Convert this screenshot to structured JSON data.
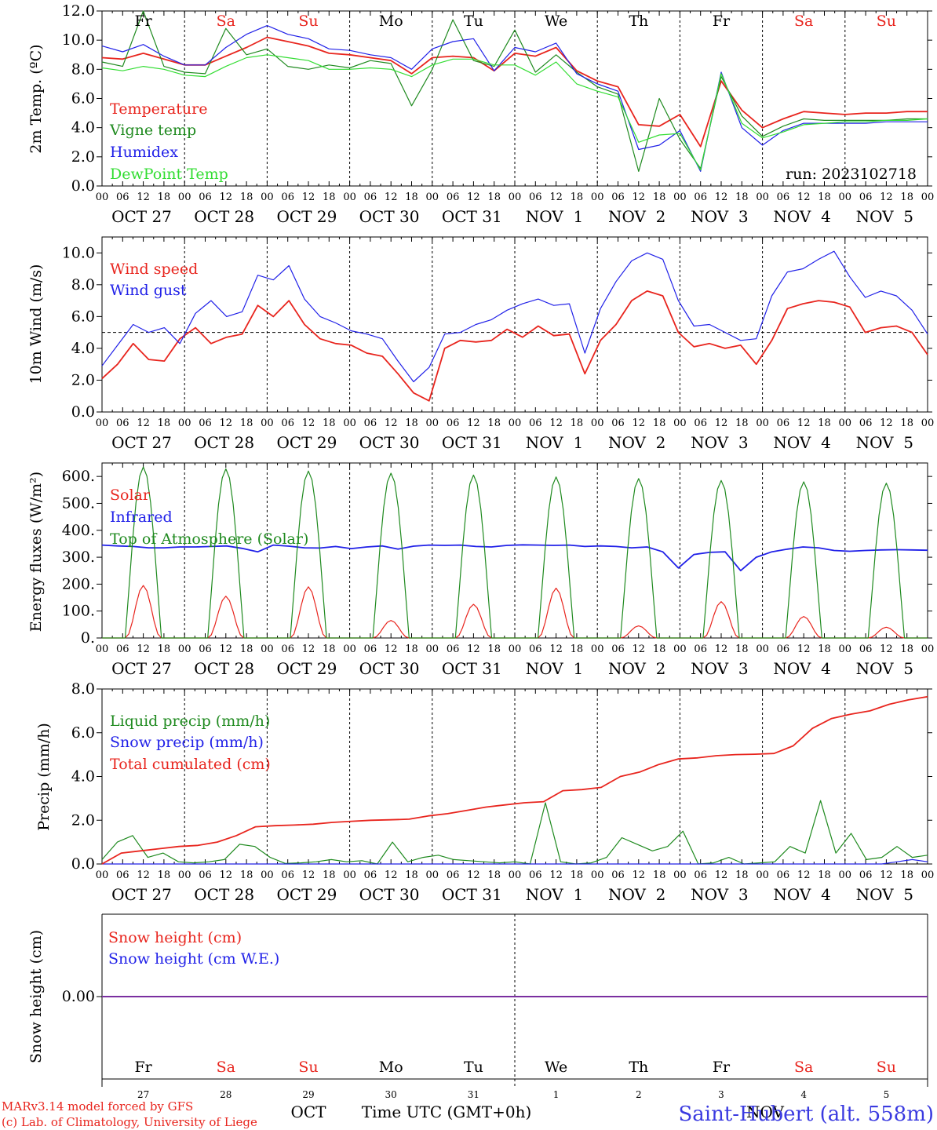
{
  "run_label": "run: 2023102718",
  "x_hour_ticks": [
    "00",
    "06",
    "12",
    "18"
  ],
  "x_date_labels": [
    "OCT 27",
    "OCT 28",
    "OCT 29",
    "OCT 30",
    "OCT 31",
    "NOV  1",
    "NOV  2",
    "NOV  3",
    "NOV  4",
    "NOV  5"
  ],
  "weekdays": [
    {
      "label": "Fr",
      "color": "#000000"
    },
    {
      "label": "Sa",
      "color": "#e8251e"
    },
    {
      "label": "Su",
      "color": "#e8251e"
    },
    {
      "label": "Mo",
      "color": "#000000"
    },
    {
      "label": "Tu",
      "color": "#000000"
    },
    {
      "label": "We",
      "color": "#000000"
    },
    {
      "label": "Th",
      "color": "#000000"
    },
    {
      "label": "Fr",
      "color": "#000000"
    },
    {
      "label": "Sa",
      "color": "#e8251e"
    },
    {
      "label": "Su",
      "color": "#e8251e"
    }
  ],
  "bottom_day_numbers": [
    "27",
    "28",
    "29",
    "30",
    "31",
    "1",
    "2",
    "3",
    "4",
    "5"
  ],
  "footer": {
    "model_line": "MARv3.14 model forced by GFS",
    "copyright_line": "(c) Lab. of Climatology, University of Liege",
    "month_oct": "OCT",
    "month_nov": "NOV",
    "axis_title": "Time UTC (GMT+0h)",
    "station": "Saint-Hubert (alt. 558m)"
  },
  "chart_data": [
    {
      "type": "line",
      "ylabel": "2m Temp. (ºC)",
      "ylim": [
        0,
        12
      ],
      "y_ticks": [
        "0.0",
        "2.0",
        "4.0",
        "6.0",
        "8.0",
        "10.0",
        "12.0"
      ],
      "x": "hours since OCT 27 00 UTC, 6-hourly, 0..240",
      "grid": "dotted day separators",
      "series": [
        {
          "name": "Temperature",
          "color": "#e8251e",
          "values": [
            8.8,
            8.7,
            9.1,
            8.7,
            8.3,
            8.3,
            8.9,
            9.5,
            10.2,
            9.9,
            9.6,
            9.1,
            9.0,
            8.8,
            8.6,
            7.7,
            8.8,
            8.9,
            8.8,
            7.9,
            9.1,
            8.9,
            9.5,
            7.9,
            7.2,
            6.8,
            4.2,
            4.1,
            4.9,
            2.7,
            7.2,
            5.2,
            4.0,
            4.6,
            5.1,
            5.0,
            4.9,
            5.0,
            5.0,
            5.1,
            5.1
          ]
        },
        {
          "name": "Vigne temp",
          "color": "#1f8a1f",
          "values": [
            8.5,
            8.2,
            12.0,
            8.2,
            7.8,
            7.7,
            10.8,
            9.0,
            9.4,
            8.2,
            8.0,
            8.3,
            8.1,
            8.6,
            8.4,
            5.5,
            8.0,
            11.4,
            8.6,
            8.2,
            10.7,
            7.8,
            9.0,
            7.8,
            6.8,
            6.3,
            1.0,
            6.0,
            3.2,
            1.2,
            7.5,
            4.8,
            3.4,
            4.1,
            4.6,
            4.5,
            4.5,
            4.5,
            4.5,
            4.6,
            4.6
          ]
        },
        {
          "name": "Humidex",
          "color": "#2121e8",
          "values": [
            9.6,
            9.2,
            9.7,
            8.9,
            8.3,
            8.3,
            9.5,
            10.4,
            11.0,
            10.4,
            10.1,
            9.4,
            9.3,
            9.0,
            8.8,
            8.0,
            9.4,
            9.9,
            10.1,
            7.9,
            9.5,
            9.2,
            9.8,
            7.7,
            7.0,
            6.5,
            2.5,
            2.8,
            3.8,
            1.0,
            7.8,
            4.0,
            2.8,
            3.8,
            4.3,
            4.3,
            4.3,
            4.3,
            4.4,
            4.4,
            4.4
          ]
        },
        {
          "name": "DewPoint Temp",
          "color": "#33dd33",
          "values": [
            8.1,
            7.9,
            8.2,
            8.0,
            7.6,
            7.5,
            8.2,
            8.8,
            9.0,
            8.8,
            8.6,
            8.0,
            8.0,
            8.1,
            8.0,
            7.5,
            8.3,
            8.7,
            8.7,
            8.3,
            8.3,
            7.6,
            8.5,
            7.0,
            6.5,
            6.1,
            3.0,
            3.5,
            3.6,
            1.1,
            7.7,
            4.3,
            3.3,
            3.7,
            4.2,
            4.3,
            4.4,
            4.4,
            4.5,
            4.5,
            4.6
          ]
        }
      ]
    },
    {
      "type": "line",
      "ylabel": "10m Wind (m/s)",
      "ylim": [
        0,
        11
      ],
      "y_ticks": [
        "0.0",
        "2.0",
        "4.0",
        "6.0",
        "8.0",
        "10.0"
      ],
      "reference_line": 5,
      "series": [
        {
          "name": "Wind speed",
          "color": "#e8251e",
          "values": [
            2.1,
            3.0,
            4.3,
            3.3,
            3.2,
            4.6,
            5.3,
            4.3,
            4.7,
            4.9,
            6.7,
            6.0,
            7.0,
            5.5,
            4.6,
            4.3,
            4.2,
            3.7,
            3.5,
            2.4,
            1.2,
            0.7,
            4.0,
            4.5,
            4.4,
            4.5,
            5.2,
            4.7,
            5.4,
            4.8,
            4.9,
            2.4,
            4.5,
            5.5,
            7.0,
            7.6,
            7.3,
            5.0,
            4.1,
            4.3,
            4.0,
            4.2,
            3.0,
            4.5,
            6.5,
            6.8,
            7.0,
            6.9,
            6.6,
            5.0,
            5.3,
            5.4,
            5.0,
            3.6
          ]
        },
        {
          "name": "Wind gust",
          "color": "#2121e8",
          "values": [
            2.9,
            4.2,
            5.5,
            5.0,
            5.3,
            4.3,
            6.2,
            7.0,
            6.0,
            6.3,
            8.6,
            8.3,
            9.2,
            7.1,
            6.0,
            5.6,
            5.1,
            4.9,
            4.6,
            3.2,
            1.9,
            2.8,
            4.9,
            5.0,
            5.5,
            5.8,
            6.4,
            6.8,
            7.1,
            6.7,
            6.8,
            3.7,
            6.5,
            8.2,
            9.5,
            10.0,
            9.6,
            7.0,
            5.4,
            5.5,
            5.0,
            4.5,
            4.6,
            7.3,
            8.8,
            9.0,
            9.6,
            10.1,
            8.5,
            7.2,
            7.6,
            7.3,
            6.4,
            4.9
          ]
        }
      ]
    },
    {
      "type": "line",
      "ylabel": "Energy fluxes (W/m²)",
      "ylim": [
        0,
        650
      ],
      "y_ticks": [
        "0.",
        "100.",
        "200.",
        "300.",
        "400.",
        "500.",
        "600."
      ],
      "series": [
        {
          "name": "Solar",
          "color": "#e8251e",
          "daily_peaks": [
            195,
            155,
            190,
            65,
            125,
            185,
            45,
            135,
            80,
            40
          ]
        },
        {
          "name": "Infrared",
          "color": "#2121e8",
          "values": [
            345,
            342,
            340,
            335,
            335,
            338,
            338,
            340,
            342,
            333,
            320,
            345,
            341,
            335,
            334,
            340,
            332,
            338,
            342,
            330,
            341,
            345,
            344,
            345,
            340,
            338,
            344,
            346,
            345,
            344,
            345,
            340,
            342,
            340,
            335,
            338,
            320,
            260,
            310,
            318,
            320,
            250,
            300,
            320,
            330,
            338,
            335,
            325,
            322,
            325,
            327,
            328,
            327,
            326
          ]
        },
        {
          "name": "Top of Atmosphere (Solar)",
          "color": "#1f8a1f",
          "daily_peaks": [
            635,
            628,
            620,
            612,
            605,
            598,
            592,
            585,
            580,
            575
          ]
        }
      ]
    },
    {
      "type": "line",
      "ylabel": "Precip (mm/h)",
      "ylim": [
        0,
        8
      ],
      "y_ticks": [
        "0.0",
        "2.0",
        "4.0",
        "6.0",
        "8.0"
      ],
      "series": [
        {
          "name": "Liquid precip (mm/h)",
          "color": "#1f8a1f",
          "values": [
            0.2,
            1.0,
            1.3,
            0.3,
            0.5,
            0.1,
            0.05,
            0.1,
            0.2,
            0.9,
            0.8,
            0.3,
            0.02,
            0.05,
            0.1,
            0.2,
            0.1,
            0.15,
            0.0,
            1.0,
            0.1,
            0.3,
            0.4,
            0.2,
            0.15,
            0.1,
            0.05,
            0.1,
            0.0,
            2.8,
            0.1,
            0.0,
            0.05,
            0.3,
            1.2,
            0.9,
            0.6,
            0.8,
            1.5,
            0.0,
            0.05,
            0.3,
            0.0,
            0.05,
            0.1,
            0.8,
            0.5,
            2.9,
            0.5,
            1.4,
            0.2,
            0.3,
            0.8,
            0.3,
            0.4
          ]
        },
        {
          "name": "Snow precip (mm/h)",
          "color": "#2121e8",
          "values": [
            0,
            0,
            0,
            0,
            0,
            0,
            0,
            0,
            0,
            0,
            0,
            0,
            0,
            0,
            0,
            0,
            0,
            0,
            0,
            0,
            0,
            0,
            0,
            0,
            0,
            0,
            0,
            0,
            0,
            0,
            0,
            0,
            0,
            0,
            0,
            0,
            0,
            0,
            0,
            0,
            0,
            0,
            0,
            0,
            0,
            0,
            0,
            0,
            0,
            0,
            0,
            0,
            0.1,
            0.2,
            0.1
          ]
        },
        {
          "name": "Total cumulated (cm)",
          "color": "#e8251e",
          "values": [
            0.0,
            0.5,
            0.6,
            0.7,
            0.8,
            0.85,
            1.0,
            1.3,
            1.7,
            1.75,
            1.78,
            1.82,
            1.9,
            1.95,
            2.0,
            2.02,
            2.05,
            2.2,
            2.3,
            2.45,
            2.6,
            2.7,
            2.8,
            2.85,
            3.35,
            3.4,
            3.5,
            4.0,
            4.2,
            4.55,
            4.8,
            4.85,
            4.95,
            5.0,
            5.02,
            5.05,
            5.4,
            6.2,
            6.65,
            6.85,
            7.0,
            7.3,
            7.5,
            7.65
          ]
        }
      ]
    },
    {
      "type": "line",
      "ylabel": "Snow height (cm)",
      "y_ticks": [
        "0.00"
      ],
      "series": [
        {
          "name": "Snow height (cm)",
          "color": "#e8251e",
          "values": [
            0,
            0
          ]
        },
        {
          "name": "Snow height (cm W.E.)",
          "color": "#2121e8",
          "values": [
            0,
            0
          ]
        }
      ]
    }
  ]
}
